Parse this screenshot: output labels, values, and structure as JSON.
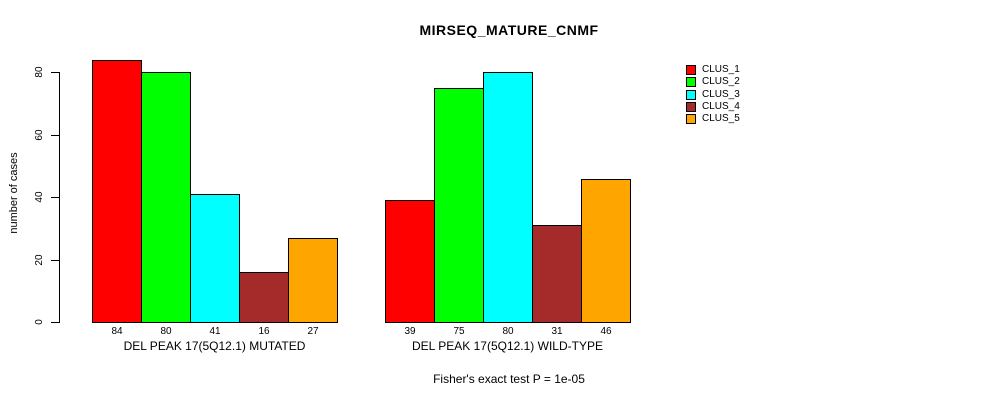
{
  "chart_data": {
    "type": "bar",
    "title": "MIRSEQ_MATURE_CNMF",
    "ylabel": "number of cases",
    "annotation": "Fisher's exact test P = 1e-05",
    "categories": [
      "DEL PEAK 17(5Q12.1) MUTATED",
      "DEL PEAK 17(5Q12.1) WILD-TYPE"
    ],
    "series": [
      {
        "name": "CLUS_1",
        "color": "#FF0000",
        "values": [
          84,
          39
        ]
      },
      {
        "name": "CLUS_2",
        "color": "#00FF00",
        "values": [
          80,
          75
        ]
      },
      {
        "name": "CLUS_3",
        "color": "#00FFFF",
        "values": [
          41,
          80
        ]
      },
      {
        "name": "CLUS_4",
        "color": "#A52A2A",
        "values": [
          16,
          31
        ]
      },
      {
        "name": "CLUS_5",
        "color": "#FFA500",
        "values": [
          27,
          46
        ]
      }
    ],
    "yticks": [
      0,
      20,
      40,
      60,
      80
    ],
    "ylim": [
      0,
      84
    ],
    "grid": false,
    "bar_value_labels_shown": true,
    "legend_position": "top-right"
  }
}
